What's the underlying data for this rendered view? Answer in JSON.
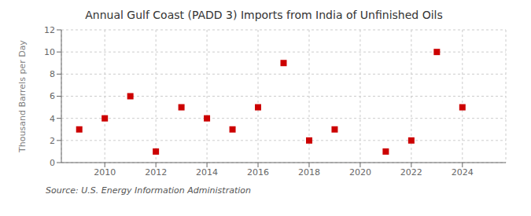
{
  "chart_data": {
    "type": "scatter",
    "title": "Annual Gulf Coast (PADD 3) Imports from India of Unfinished Oils",
    "y_label": "Thousand Barrels per Day",
    "annotations": [
      "Source: U.S. Energy Information Administration"
    ],
    "x": [
      2009,
      2010,
      2011,
      2012,
      2013,
      2014,
      2015,
      2016,
      2017,
      2018,
      2019,
      2021,
      2022,
      2023,
      2024
    ],
    "values": [
      3,
      4,
      6,
      1,
      5,
      4,
      3,
      5,
      9,
      2,
      3,
      1,
      2,
      10,
      5
    ],
    "color": "#cc0000",
    "marker": "square",
    "xlim": [
      2008.3,
      2025.7
    ],
    "xticks": [
      2010,
      2012,
      2014,
      2016,
      2018,
      2020,
      2022,
      2024
    ],
    "ylim": [
      0,
      12
    ],
    "yticks": [
      0,
      2,
      4,
      6,
      8,
      10,
      12
    ],
    "grid": true
  }
}
